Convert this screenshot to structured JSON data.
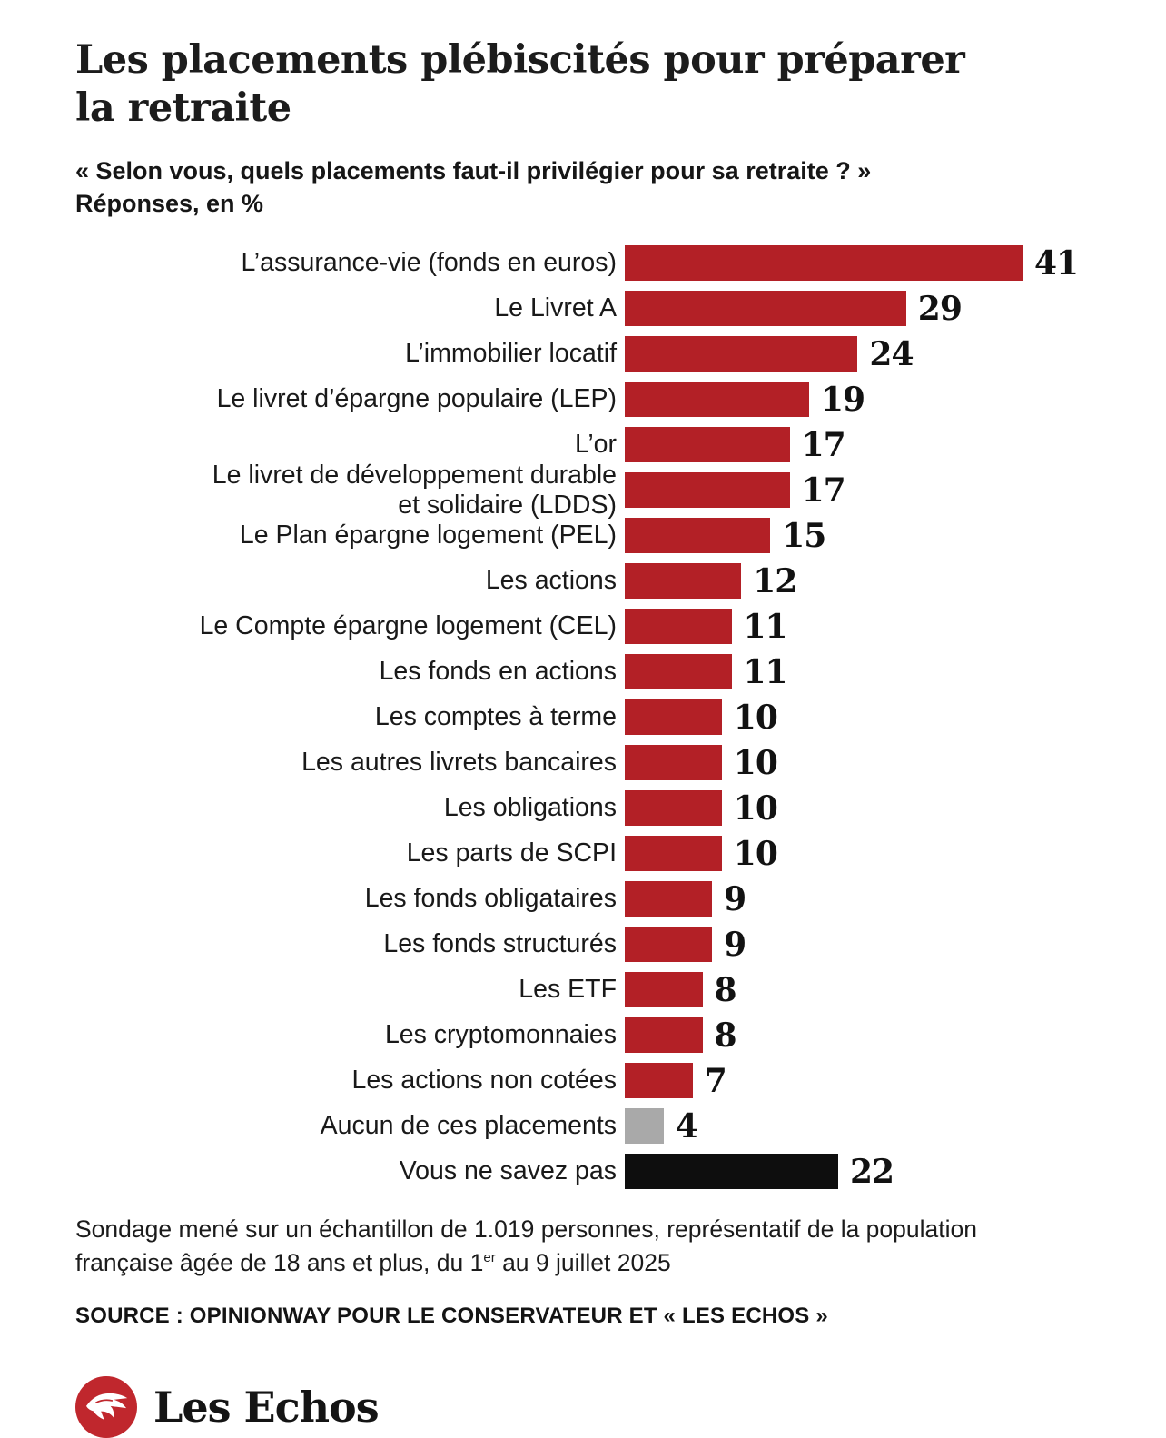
{
  "header": {
    "title": "Les placements plébiscités pour préparer la retraite",
    "subtitle_line1": "« Selon vous, quels placements faut-il privilégier pour sa retraite ? »",
    "subtitle_line2": "Réponses, en %"
  },
  "chart_data": {
    "type": "bar",
    "orientation": "horizontal",
    "title": "Les placements plébiscités pour préparer la retraite",
    "question": "« Selon vous, quels placements faut-il privilégier pour sa retraite ? »",
    "unit": "%",
    "xlabel": "",
    "ylabel": "",
    "xlim": [
      0,
      41
    ],
    "grid": false,
    "legend": "none",
    "colors": {
      "red": "#b32026",
      "gray": "#a9a9a9",
      "black": "#0e0e0e"
    },
    "rows": [
      {
        "label": "L’assurance-vie (fonds en euros)",
        "value": 41,
        "color": "red"
      },
      {
        "label": "Le Livret A",
        "value": 29,
        "color": "red"
      },
      {
        "label": "L’immobilier locatif",
        "value": 24,
        "color": "red"
      },
      {
        "label": "Le livret d’épargne populaire (LEP)",
        "value": 19,
        "color": "red"
      },
      {
        "label": "L’or",
        "value": 17,
        "color": "red"
      },
      {
        "label": "Le livret de développement durable\net solidaire (LDDS)",
        "value": 17,
        "color": "red"
      },
      {
        "label": "Le Plan épargne logement (PEL)",
        "value": 15,
        "color": "red"
      },
      {
        "label": "Les actions",
        "value": 12,
        "color": "red"
      },
      {
        "label": "Le Compte épargne logement (CEL)",
        "value": 11,
        "color": "red"
      },
      {
        "label": "Les fonds en actions",
        "value": 11,
        "color": "red"
      },
      {
        "label": "Les comptes à terme",
        "value": 10,
        "color": "red"
      },
      {
        "label": "Les autres livrets bancaires",
        "value": 10,
        "color": "red"
      },
      {
        "label": "Les obligations",
        "value": 10,
        "color": "red"
      },
      {
        "label": "Les parts de SCPI",
        "value": 10,
        "color": "red"
      },
      {
        "label": "Les fonds obligataires",
        "value": 9,
        "color": "red"
      },
      {
        "label": "Les fonds structurés",
        "value": 9,
        "color": "red"
      },
      {
        "label": "Les ETF",
        "value": 8,
        "color": "red"
      },
      {
        "label": "Les cryptomonnaies",
        "value": 8,
        "color": "red"
      },
      {
        "label": "Les actions non cotées",
        "value": 7,
        "color": "red"
      },
      {
        "label": "Aucun de ces placements",
        "value": 4,
        "color": "gray"
      },
      {
        "label": "Vous ne savez pas",
        "value": 22,
        "color": "black"
      }
    ]
  },
  "footer": {
    "note_part1": "Sondage mené sur un échantillon de 1.019 personnes, représentatif de la population française âgée de 18 ans et plus, du 1",
    "note_sup": "er",
    "note_part2": " au 9 juillet 2025",
    "source": "SOURCE : OPINIONWAY POUR LE CONSERVATEUR ET « LES ECHOS »"
  },
  "logo": {
    "text": "Les Echos",
    "mark": "pegasus-icon",
    "mark_color": "#c0272d"
  }
}
